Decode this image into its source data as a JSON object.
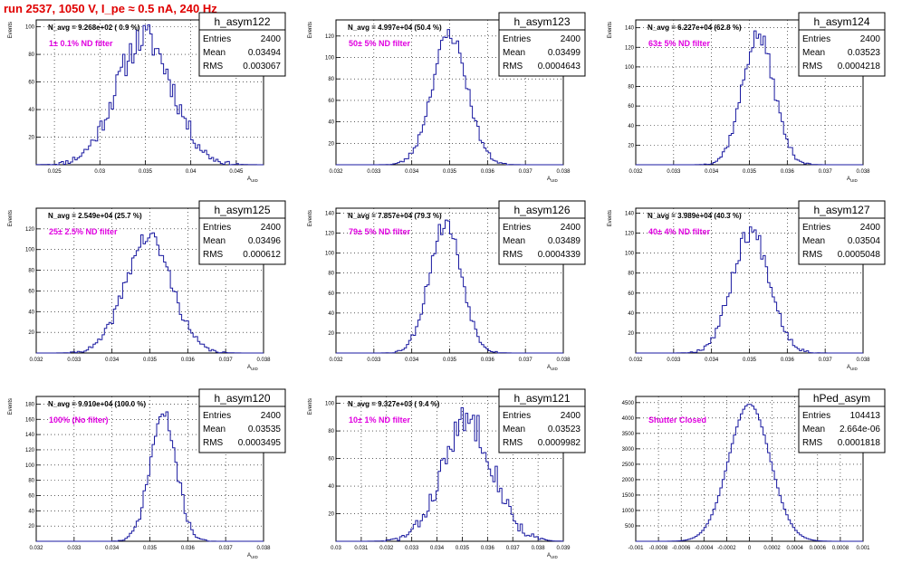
{
  "run_title": "run 2537,  1050 V, I_pe ≈ 0.5 nA, 240 Hz",
  "colors": {
    "title": "#e00000",
    "histogram": "#1a1aa0",
    "annotation": "#e000e0",
    "grid": "#000000"
  },
  "y_axis_label": "Events",
  "stats_labels": {
    "entries": "Entries",
    "mean": "Mean",
    "rms": "RMS"
  },
  "chart_data": [
    {
      "type": "histogram",
      "name": "h_asym122",
      "navg": "N_avg = 9.268e+02 ( 0.9 %)",
      "annotation": "1± 0.1% ND filter",
      "entries": "2400",
      "mean": "0.03494",
      "rms": "0.003067",
      "xlabel": "A_UID",
      "ylabel": "Events",
      "xlim": [
        0.023,
        0.048
      ],
      "ylim": [
        0,
        105
      ],
      "grid": true,
      "x_ticks": [
        0.025,
        0.03,
        0.035,
        0.04,
        0.045
      ],
      "x_tick_labels": [
        "0.025",
        "0.03",
        "0.035",
        "0.04",
        "0.045"
      ],
      "y_ticks": [
        20,
        40,
        60,
        80,
        100
      ],
      "gauss": {
        "mu": 0.0349,
        "sigma": 0.0031,
        "peak": 92,
        "bins": 100,
        "noise": 12,
        "seed": 11
      }
    },
    {
      "type": "histogram",
      "name": "h_asym123",
      "navg": "N_avg = 4.997e+04 (50.4 %)",
      "annotation": "50± 5% ND filter",
      "entries": "2400",
      "mean": "0.03499",
      "rms": "0.0004643",
      "xlabel": "A_UID",
      "ylabel": "Events",
      "xlim": [
        0.032,
        0.038
      ],
      "ylim": [
        0,
        135
      ],
      "grid": true,
      "x_ticks": [
        0.032,
        0.033,
        0.034,
        0.035,
        0.036,
        0.037,
        0.038
      ],
      "x_tick_labels": [
        "0.032",
        "0.033",
        "0.034",
        "0.035",
        "0.036",
        "0.037",
        "0.038"
      ],
      "y_ticks": [
        20,
        40,
        60,
        80,
        100,
        120
      ],
      "gauss": {
        "mu": 0.035,
        "sigma": 0.00046,
        "peak": 122,
        "bins": 100,
        "noise": 8,
        "seed": 23
      }
    },
    {
      "type": "histogram",
      "name": "h_asym124",
      "navg": "N_avg = 6.227e+04 (62.8 %)",
      "annotation": "63± 5% ND filter",
      "entries": "2400",
      "mean": "0.03523",
      "rms": "0.0004218",
      "xlabel": "A_UID",
      "ylabel": "Events",
      "xlim": [
        0.032,
        0.038
      ],
      "ylim": [
        0,
        148
      ],
      "grid": true,
      "x_ticks": [
        0.032,
        0.033,
        0.034,
        0.035,
        0.036,
        0.037,
        0.038
      ],
      "x_tick_labels": [
        "0.032",
        "0.033",
        "0.034",
        "0.035",
        "0.036",
        "0.037",
        "0.038"
      ],
      "y_ticks": [
        20,
        40,
        60,
        80,
        100,
        120,
        140
      ],
      "gauss": {
        "mu": 0.03523,
        "sigma": 0.00042,
        "peak": 132,
        "bins": 100,
        "noise": 9,
        "seed": 37
      }
    },
    {
      "type": "histogram",
      "name": "h_asym125",
      "navg": "N_avg = 2.549e+04 (25.7 %)",
      "annotation": "25± 2.5% ND filter",
      "entries": "2400",
      "mean": "0.03496",
      "rms": "0.000612",
      "xlabel": "A_UID",
      "ylabel": "Events",
      "xlim": [
        0.032,
        0.038
      ],
      "ylim": [
        0,
        140
      ],
      "grid": true,
      "x_ticks": [
        0.032,
        0.033,
        0.034,
        0.035,
        0.036,
        0.037,
        0.038
      ],
      "x_tick_labels": [
        "0.032",
        "0.033",
        "0.034",
        "0.035",
        "0.036",
        "0.037",
        "0.038"
      ],
      "y_ticks": [
        20,
        40,
        60,
        80,
        100,
        120
      ],
      "gauss": {
        "mu": 0.03496,
        "sigma": 0.00061,
        "peak": 112,
        "bins": 100,
        "noise": 9,
        "seed": 41
      }
    },
    {
      "type": "histogram",
      "name": "h_asym126",
      "navg": "N_avg = 7.857e+04 (79.3 %)",
      "annotation": "79± 5% ND filter",
      "entries": "2400",
      "mean": "0.03489",
      "rms": "0.0004339",
      "xlabel": "A_UID",
      "ylabel": "Events",
      "xlim": [
        0.032,
        0.038
      ],
      "ylim": [
        0,
        145
      ],
      "grid": true,
      "x_ticks": [
        0.032,
        0.033,
        0.034,
        0.035,
        0.036,
        0.037,
        0.038
      ],
      "x_tick_labels": [
        "0.032",
        "0.033",
        "0.034",
        "0.035",
        "0.036",
        "0.037",
        "0.038"
      ],
      "y_ticks": [
        20,
        40,
        60,
        80,
        100,
        120,
        140
      ],
      "gauss": {
        "mu": 0.03489,
        "sigma": 0.00043,
        "peak": 130,
        "bins": 100,
        "noise": 9,
        "seed": 53
      }
    },
    {
      "type": "histogram",
      "name": "h_asym127",
      "navg": "N_avg = 3.989e+04 (40.3 %)",
      "annotation": "40± 4% ND filter",
      "entries": "2400",
      "mean": "0.03504",
      "rms": "0.0005048",
      "xlabel": "A_UID",
      "ylabel": "Events",
      "xlim": [
        0.032,
        0.038
      ],
      "ylim": [
        0,
        145
      ],
      "grid": true,
      "x_ticks": [
        0.032,
        0.033,
        0.034,
        0.035,
        0.036,
        0.037,
        0.038
      ],
      "x_tick_labels": [
        "0.032",
        "0.033",
        "0.034",
        "0.035",
        "0.036",
        "0.037",
        "0.038"
      ],
      "y_ticks": [
        20,
        40,
        60,
        80,
        100,
        120,
        140
      ],
      "gauss": {
        "mu": 0.03504,
        "sigma": 0.0005,
        "peak": 122,
        "bins": 100,
        "noise": 10,
        "seed": 67
      }
    },
    {
      "type": "histogram",
      "name": "h_asym120",
      "navg": "N_avg = 9.910e+04 (100.0 %)",
      "annotation": "100% (No filter)",
      "entries": "2400",
      "mean": "0.03535",
      "rms": "0.0003495",
      "xlabel": "A_UID",
      "ylabel": "Events",
      "xlim": [
        0.032,
        0.038
      ],
      "ylim": [
        0,
        190
      ],
      "grid": true,
      "x_ticks": [
        0.032,
        0.033,
        0.034,
        0.035,
        0.036,
        0.037,
        0.038
      ],
      "x_tick_labels": [
        "0.032",
        "0.033",
        "0.034",
        "0.035",
        "0.036",
        "0.037",
        "0.038"
      ],
      "y_ticks": [
        20,
        40,
        60,
        80,
        100,
        120,
        140,
        160,
        180
      ],
      "gauss": {
        "mu": 0.03535,
        "sigma": 0.00035,
        "peak": 165,
        "bins": 100,
        "noise": 12,
        "seed": 71
      }
    },
    {
      "type": "histogram",
      "name": "h_asym121",
      "navg": "N_avg = 9.327e+03 ( 9.4 %)",
      "annotation": "10± 1% ND filter",
      "entries": "2400",
      "mean": "0.03523",
      "rms": "0.0009982",
      "xlabel": "A_UID",
      "ylabel": "Events",
      "xlim": [
        0.03,
        0.039
      ],
      "ylim": [
        0,
        105
      ],
      "grid": true,
      "x_ticks": [
        0.03,
        0.031,
        0.032,
        0.033,
        0.034,
        0.035,
        0.036,
        0.037,
        0.038,
        0.039
      ],
      "x_tick_labels": [
        "0.03",
        "0.031",
        "0.032",
        "0.033",
        "0.034",
        "0.035",
        "0.036",
        "0.037",
        "0.038",
        "0.039"
      ],
      "y_ticks": [
        20,
        40,
        60,
        80,
        100
      ],
      "gauss": {
        "mu": 0.03523,
        "sigma": 0.001,
        "peak": 88,
        "bins": 100,
        "noise": 12,
        "seed": 83
      }
    },
    {
      "type": "histogram",
      "name": "hPed_asym",
      "navg": "",
      "annotation": "Shutter Closed",
      "entries": "104413",
      "mean": "2.664e-06",
      "rms": "0.0001818",
      "xlabel": "",
      "ylabel": "",
      "xlim": [
        -0.001,
        0.001
      ],
      "ylim": [
        0,
        4700
      ],
      "grid": true,
      "x_ticks": [
        -0.001,
        -0.0008,
        -0.0006,
        -0.0004,
        -0.0002,
        0,
        0.0002,
        0.0004,
        0.0006,
        0.0008,
        0.001
      ],
      "x_tick_labels": [
        "-0.001",
        "-0.0008",
        "-0.0006",
        "-0.0004",
        "-0.0002",
        "0",
        "0.0002",
        "0.0004",
        "0.0006",
        "0.0008",
        "0.001"
      ],
      "y_ticks": [
        500,
        1000,
        1500,
        2000,
        2500,
        3000,
        3500,
        4000,
        4500
      ],
      "gauss": {
        "mu": 0.0,
        "sigma": 0.000182,
        "peak": 4450,
        "bins": 100,
        "noise": 0.8,
        "seed": 97
      }
    }
  ]
}
